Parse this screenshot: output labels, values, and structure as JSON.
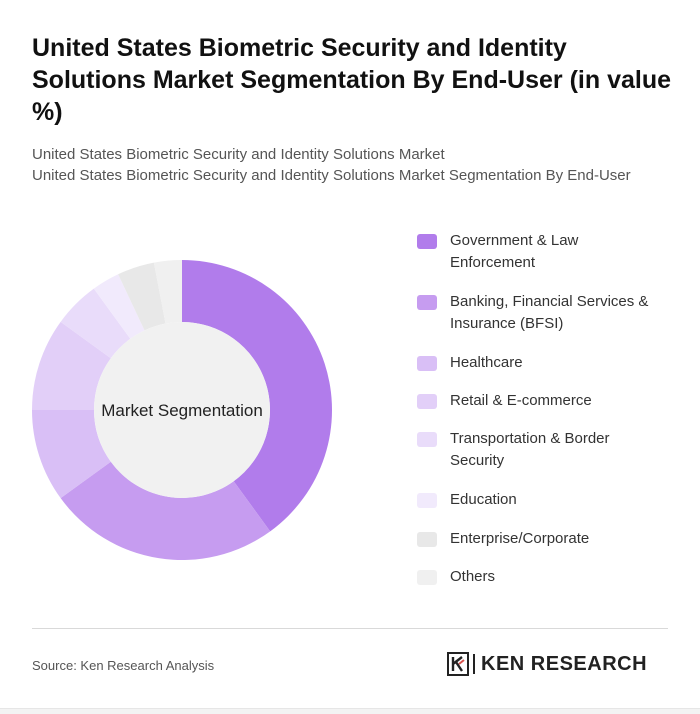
{
  "title": "United States Biometric Security and Identity Solutions Market Segmentation By End-User (in value %)",
  "subtitle_line1": "United States Biometric Security and Identity Solutions Market",
  "subtitle_line2": "United States Biometric Security and Identity Solutions Market Segmentation By End-User",
  "source": "Source: Ken Research Analysis",
  "logo": {
    "brand": "KEN RESEARCH",
    "icon": "k-logo-icon"
  },
  "chart_data": {
    "type": "pie",
    "center_label": "Market Segmentation",
    "categories": [
      "Government & Law Enforcement",
      "Banking, Financial Services & Insurance (BFSI)",
      "Healthcare",
      "Retail & E-commerce",
      "Transportation & Border Security",
      "Education",
      "Enterprise/Corporate",
      "Others"
    ],
    "values": [
      40,
      25,
      10,
      10,
      5,
      3,
      4,
      3
    ],
    "colors": [
      "#b17ceb",
      "#c69cf0",
      "#d9bff6",
      "#e2cff8",
      "#e9dcfa",
      "#f1eafc",
      "#e8e8e8",
      "#f0f0f0"
    ],
    "legend_position": "right"
  }
}
